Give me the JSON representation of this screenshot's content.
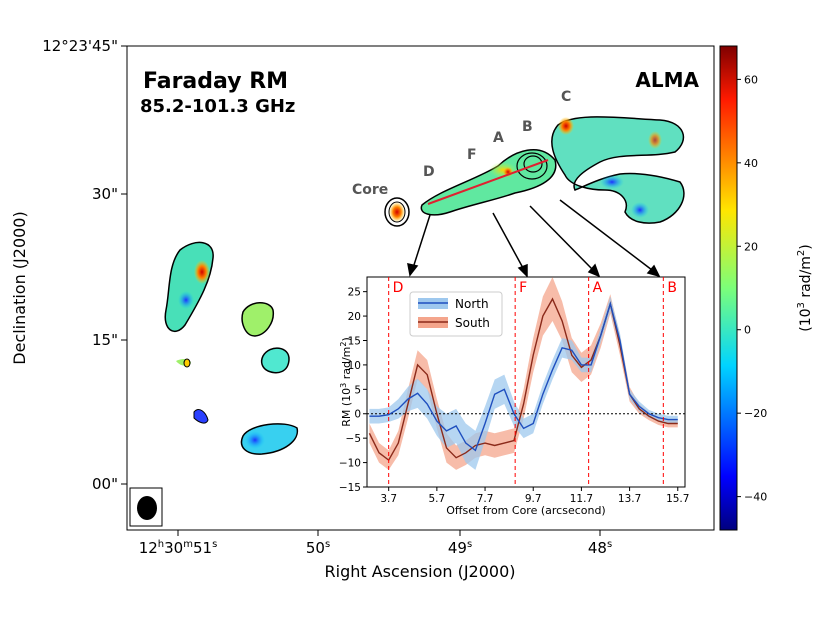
{
  "title": "Faraday RM",
  "subtitle": "85.2-101.3 GHz",
  "instrument": "ALMA",
  "axes": {
    "xlabel": "Right Ascension (J2000)",
    "ylabel": "Declination (J2000)",
    "xticks": [
      {
        "pre": "12",
        "h": "h",
        "mid": "30",
        "m": "m",
        "sec": "51",
        "s": "s"
      },
      {
        "pre": "",
        "h": "",
        "mid": "",
        "m": "",
        "sec": "50",
        "s": "s"
      },
      {
        "pre": "",
        "h": "",
        "mid": "",
        "m": "",
        "sec": "49",
        "s": "s"
      },
      {
        "pre": "",
        "h": "",
        "mid": "",
        "m": "",
        "sec": "48",
        "s": "s"
      }
    ],
    "yticks": [
      "12°23'45\"",
      "30\"",
      "15\"",
      "00\""
    ]
  },
  "colorbar": {
    "label": "(10",
    "label_exp": "3",
    "label_tail": " rad/m",
    "label_exp2": "2",
    "label_end": ")",
    "ticks": [
      "60",
      "40",
      "20",
      "0",
      "−20",
      "−40"
    ],
    "tick_values": [
      60,
      40,
      20,
      0,
      -20,
      -40
    ],
    "range": [
      -48,
      68
    ]
  },
  "knots": [
    "Core",
    "D",
    "F",
    "A",
    "B",
    "C"
  ],
  "chart_data": {
    "type": "line",
    "title": "",
    "xlabel": "Offset from Core (arcsecond)",
    "ylabel": "RM (10",
    "ylabel_exp": "3",
    "ylabel_tail": " rad/m",
    "ylabel_exp2": "2",
    "ylabel_end": ")",
    "xlim": [
      2.8,
      16.0
    ],
    "ylim": [
      -15,
      28
    ],
    "xticks": [
      "3.7",
      "5.7",
      "7.7",
      "9.7",
      "11.7",
      "13.7",
      "15.7"
    ],
    "xtick_values": [
      3.7,
      5.7,
      7.7,
      9.7,
      11.7,
      13.7,
      15.7
    ],
    "yticks": [
      "−15",
      "−10",
      "−5",
      "0",
      "5",
      "10",
      "15",
      "20",
      "25"
    ],
    "ytick_values": [
      -15,
      -10,
      -5,
      0,
      5,
      10,
      15,
      20,
      25
    ],
    "markers": [
      {
        "label": "D",
        "x": 3.7
      },
      {
        "label": "F",
        "x": 8.95
      },
      {
        "label": "A",
        "x": 12.0
      },
      {
        "label": "B",
        "x": 15.1
      }
    ],
    "x": [
      2.9,
      3.3,
      3.7,
      4.1,
      4.5,
      4.9,
      5.3,
      5.7,
      6.1,
      6.5,
      6.9,
      7.3,
      7.7,
      8.1,
      8.5,
      8.9,
      9.3,
      9.7,
      10.1,
      10.5,
      10.9,
      11.3,
      11.7,
      12.1,
      12.5,
      12.9,
      13.3,
      13.7,
      14.1,
      14.5,
      14.9,
      15.3,
      15.7
    ],
    "series": [
      {
        "name": "North",
        "color": "#1f4fbf",
        "band_color": "#9ec8ee",
        "values": [
          -0.5,
          -0.5,
          -0.2,
          1.0,
          3.0,
          4.2,
          2.0,
          -1.5,
          -3.5,
          -2.5,
          -6.0,
          -7.5,
          -2.0,
          4.0,
          5.0,
          0.0,
          -3.0,
          -2.0,
          4.0,
          9.0,
          13.5,
          13.0,
          10.0,
          10.0,
          16.0,
          22.5,
          15.0,
          4.0,
          1.5,
          0.0,
          -0.8,
          -1.2,
          -1.2
        ],
        "band": [
          1.5,
          1.5,
          1.5,
          2.0,
          2.5,
          3.0,
          3.0,
          3.0,
          3.5,
          3.5,
          4.0,
          4.0,
          3.5,
          3.0,
          3.0,
          2.5,
          2.0,
          2.0,
          2.0,
          2.0,
          2.0,
          2.0,
          1.5,
          1.5,
          1.5,
          1.5,
          1.5,
          1.0,
          1.0,
          0.8,
          0.8,
          0.8,
          0.8
        ]
      },
      {
        "name": "South",
        "color": "#8b2a1a",
        "band_color": "#f4a58c",
        "values": [
          -4.0,
          -8.0,
          -9.5,
          -6.0,
          2.0,
          10.0,
          8.0,
          0.0,
          -7.0,
          -9.0,
          -8.0,
          -6.5,
          -6.0,
          -6.5,
          -6.0,
          -5.5,
          2.0,
          12.0,
          20.0,
          23.5,
          19.0,
          12.0,
          9.5,
          11.0,
          16.0,
          22.5,
          14.0,
          4.0,
          1.0,
          -0.5,
          -1.5,
          -2.0,
          -2.0
        ],
        "band": [
          2.0,
          2.0,
          2.0,
          2.5,
          3.0,
          3.0,
          3.0,
          3.0,
          3.0,
          2.5,
          2.5,
          2.5,
          2.5,
          2.5,
          2.5,
          2.5,
          3.0,
          3.5,
          4.0,
          4.5,
          4.0,
          3.5,
          3.0,
          3.0,
          2.5,
          2.0,
          2.0,
          1.5,
          1.0,
          0.8,
          0.8,
          0.8,
          0.8
        ]
      }
    ]
  }
}
